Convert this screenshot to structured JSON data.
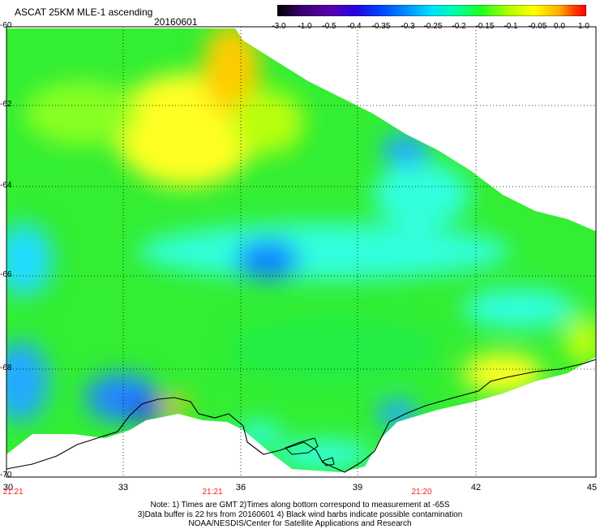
{
  "header": {
    "title": "ASCAT 25KM MLE-1 ascending",
    "date": "20160601"
  },
  "colorbar": {
    "labels": [
      "-3.0",
      "-1.0",
      "-0.5",
      "-0.4",
      "-0.35",
      "-0.3",
      "-0.25",
      "-0.2",
      "-0.15",
      "-0.1",
      "-0.05",
      "0.0",
      "1.0"
    ],
    "colors": [
      "#000000",
      "#3a0070",
      "#5a00b0",
      "#2a00e0",
      "#0040ff",
      "#0090ff",
      "#00e0ff",
      "#00ffa0",
      "#20ff20",
      "#b0ff00",
      "#ffff00",
      "#ffb000",
      "#ff4000",
      "#ff0000"
    ]
  },
  "map": {
    "lat_labels": [
      "-60",
      "-62",
      "-64",
      "-66",
      "-68",
      "-70"
    ],
    "lon_labels": [
      "30",
      "33",
      "36",
      "39",
      "42",
      "45"
    ],
    "times": [
      "21:21",
      "21:21",
      "21:20"
    ]
  },
  "notes": {
    "line1": "Note: 1) Times are GMT 2)Times along bottom correspond to measurement at -65S",
    "line2": "3)Data buffer is 22 hrs from 20160601 4) Black wind barbs indicate possible contamination",
    "line3": "NOAA/NESDIS/Center for Satellite Applications and Research"
  }
}
